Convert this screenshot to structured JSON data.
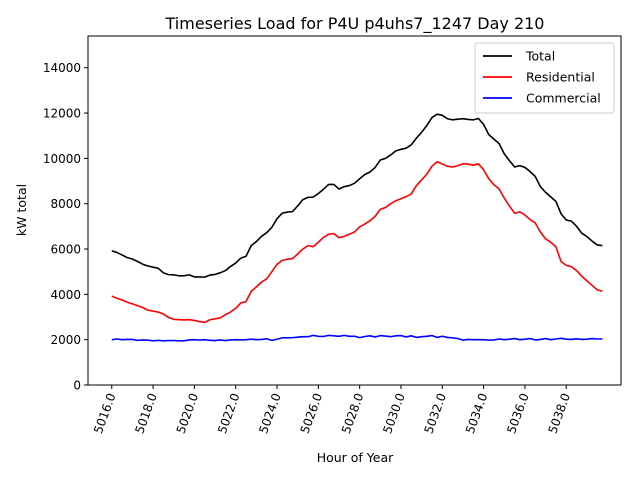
{
  "chart_data": {
    "type": "line",
    "title": "Timeseries Load for P4U p4uhs7_1247  Day 210",
    "xlabel": "Hour of Year",
    "ylabel": "kW total",
    "xlim": [
      5014.85,
      5040.65
    ],
    "ylim": [
      0,
      15400
    ],
    "x_ticks": [
      5016,
      5018,
      5020,
      5022,
      5024,
      5026,
      5028,
      5030,
      5032,
      5034,
      5036,
      5038
    ],
    "x_tick_labels": [
      "5016.0",
      "5018.0",
      "5020.0",
      "5022.0",
      "5024.0",
      "5026.0",
      "5028.0",
      "5030.0",
      "5032.0",
      "5034.0",
      "5036.0",
      "5038.0"
    ],
    "y_ticks": [
      0,
      2000,
      4000,
      6000,
      8000,
      10000,
      12000,
      14000
    ],
    "y_tick_labels": [
      "0",
      "2000",
      "4000",
      "6000",
      "8000",
      "10000",
      "12000",
      "14000"
    ],
    "grid": false,
    "legend_position": "top-right",
    "x": [
      5016.0,
      5016.25,
      5016.5,
      5016.75,
      5017.0,
      5017.25,
      5017.5,
      5017.75,
      5018.0,
      5018.25,
      5018.5,
      5018.75,
      5019.0,
      5019.25,
      5019.5,
      5019.75,
      5020.0,
      5020.25,
      5020.5,
      5020.75,
      5021.0,
      5021.25,
      5021.5,
      5021.75,
      5022.0,
      5022.25,
      5022.5,
      5022.75,
      5023.0,
      5023.25,
      5023.5,
      5023.75,
      5024.0,
      5024.25,
      5024.5,
      5024.75,
      5025.0,
      5025.25,
      5025.5,
      5025.75,
      5026.0,
      5026.25,
      5026.5,
      5026.75,
      5027.0,
      5027.25,
      5027.5,
      5027.75,
      5028.0,
      5028.25,
      5028.5,
      5028.75,
      5029.0,
      5029.25,
      5029.5,
      5029.75,
      5030.0,
      5030.25,
      5030.5,
      5030.75,
      5031.0,
      5031.25,
      5031.5,
      5031.75,
      5032.0,
      5032.25,
      5032.5,
      5032.75,
      5033.0,
      5033.25,
      5033.5,
      5033.75,
      5034.0,
      5034.25,
      5034.5,
      5034.75,
      5035.0,
      5035.25,
      5035.5,
      5035.75,
      5036.0,
      5036.25,
      5036.5,
      5036.75,
      5037.0,
      5037.25,
      5037.5,
      5037.75,
      5038.0,
      5038.25,
      5038.5,
      5038.75,
      5039.0,
      5039.25,
      5039.5,
      5039.75
    ],
    "series": [
      {
        "name": "Total",
        "color": "#000000",
        "values": [
          5920,
          5850,
          5740,
          5620,
          5560,
          5450,
          5330,
          5250,
          5200,
          5150,
          4950,
          4870,
          4860,
          4820,
          4820,
          4860,
          4770,
          4770,
          4760,
          4850,
          4880,
          4950,
          5050,
          5230,
          5380,
          5600,
          5680,
          6150,
          6330,
          6560,
          6720,
          6960,
          7340,
          7580,
          7630,
          7650,
          7900,
          8180,
          8280,
          8290,
          8450,
          8640,
          8850,
          8850,
          8650,
          8750,
          8800,
          8900,
          9100,
          9290,
          9400,
          9600,
          9930,
          10000,
          10150,
          10330,
          10400,
          10450,
          10600,
          10900,
          11150,
          11450,
          11800,
          11950,
          11900,
          11750,
          11700,
          11730,
          11750,
          11720,
          11700,
          11760,
          11500,
          11050,
          10850,
          10650,
          10200,
          9900,
          9620,
          9680,
          9600,
          9420,
          9200,
          8750,
          8500,
          8300,
          8100,
          7550,
          7280,
          7230,
          7000,
          6700,
          6550,
          6350,
          6180,
          6150
        ]
      },
      {
        "name": "Residential",
        "color": "#ff0000",
        "values": [
          3920,
          3830,
          3750,
          3650,
          3580,
          3500,
          3420,
          3300,
          3260,
          3220,
          3130,
          2980,
          2900,
          2880,
          2870,
          2880,
          2850,
          2800,
          2760,
          2880,
          2920,
          2960,
          3100,
          3220,
          3380,
          3620,
          3680,
          4130,
          4330,
          4540,
          4680,
          5000,
          5320,
          5500,
          5550,
          5580,
          5780,
          6000,
          6150,
          6100,
          6300,
          6510,
          6650,
          6680,
          6500,
          6560,
          6650,
          6750,
          6980,
          7100,
          7250,
          7440,
          7750,
          7830,
          8000,
          8130,
          8220,
          8310,
          8430,
          8800,
          9050,
          9300,
          9650,
          9850,
          9750,
          9650,
          9620,
          9680,
          9760,
          9750,
          9700,
          9760,
          9500,
          9100,
          8840,
          8650,
          8250,
          7900,
          7580,
          7640,
          7500,
          7300,
          7150,
          6750,
          6450,
          6300,
          6100,
          5450,
          5280,
          5220,
          5050,
          4800,
          4600,
          4400,
          4200,
          4130
        ]
      },
      {
        "name": "Commercial",
        "color": "#0000ff",
        "values": [
          2000,
          2030,
          2000,
          2010,
          2010,
          1970,
          1990,
          1980,
          1950,
          1970,
          1950,
          1960,
          1960,
          1950,
          1950,
          1990,
          2000,
          1980,
          2000,
          1970,
          1960,
          1990,
          1960,
          1990,
          2000,
          1990,
          2000,
          2020,
          2000,
          2010,
          2040,
          1970,
          2020,
          2080,
          2080,
          2090,
          2110,
          2130,
          2130,
          2190,
          2150,
          2140,
          2190,
          2170,
          2150,
          2190,
          2150,
          2150,
          2090,
          2140,
          2170,
          2120,
          2180,
          2160,
          2130,
          2170,
          2180,
          2120,
          2170,
          2100,
          2130,
          2150,
          2180,
          2100,
          2150,
          2100,
          2080,
          2050,
          1980,
          2010,
          2000,
          2000,
          2000,
          1980,
          1990,
          2030,
          2000,
          2020,
          2050,
          2000,
          2020,
          2050,
          1990,
          2010,
          2050,
          2000,
          2030,
          2060,
          2020,
          2010,
          2040,
          2010,
          2020,
          2050,
          2030,
          2030
        ]
      }
    ]
  }
}
